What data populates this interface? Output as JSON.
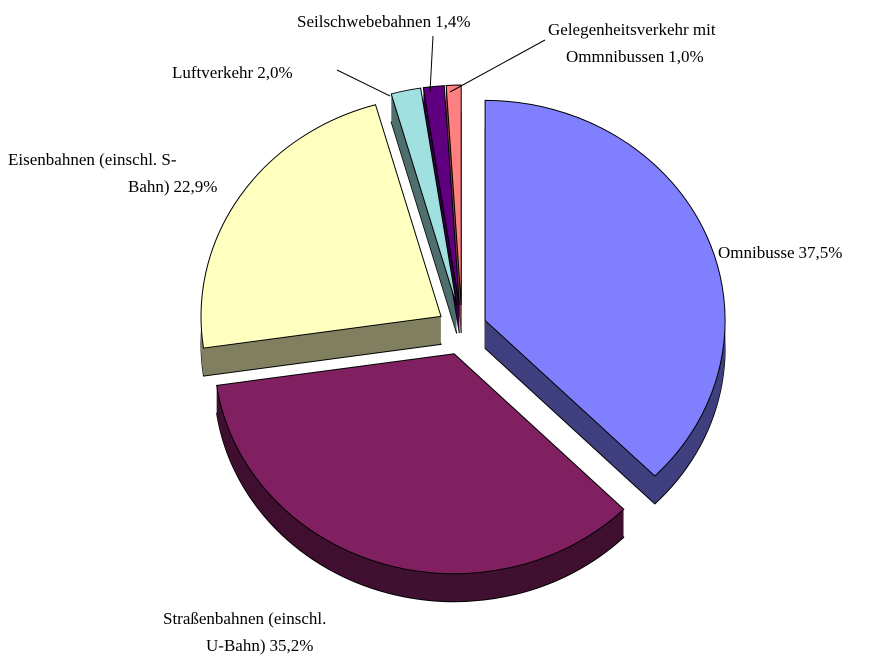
{
  "chart_data": {
    "type": "pie",
    "categories": [
      "Omnibusse",
      "Straßenbahnen (einschl.\nU-Bahn)",
      "Eisenbahnen (einschl. S-\nBahn)",
      "Luftverkehr",
      "Seilschwebebahnen",
      "Gelegenheitsverkehr mit\nOmmnibussen"
    ],
    "values": [
      37.5,
      35.2,
      22.9,
      2.0,
      1.4,
      1.0
    ],
    "value_labels": [
      "37,5%",
      "35,2%",
      "22,9%",
      "2,0%",
      "1,4%",
      "1,0%"
    ],
    "colors": [
      "#8080ff",
      "#802060",
      "#ffffc0",
      "#a0e0e0",
      "#600080",
      "#ff8080"
    ]
  }
}
